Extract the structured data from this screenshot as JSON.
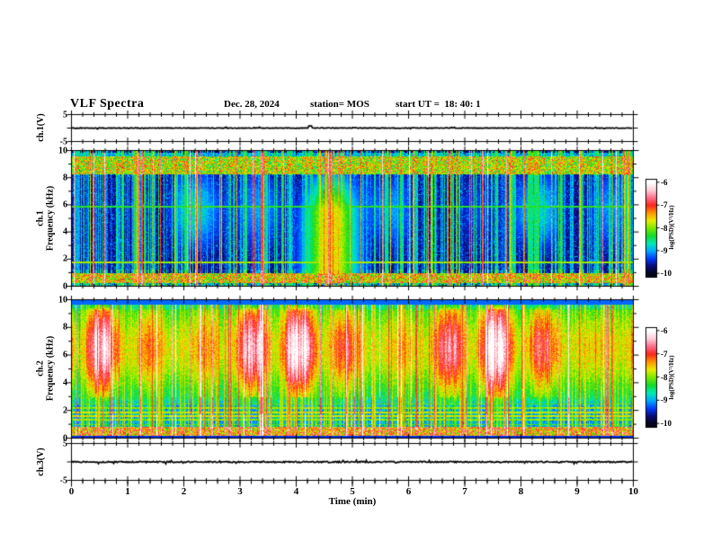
{
  "header": {
    "title": "VLF Spectra",
    "date": "Dec. 28, 2024",
    "station": "station= MOS",
    "start_ut": "start UT =  18: 40: 1"
  },
  "axes": {
    "time": {
      "label": "Time (min)",
      "range": [
        0,
        10
      ],
      "ticks": [
        0,
        1,
        2,
        3,
        4,
        5,
        6,
        7,
        8,
        9,
        10
      ],
      "minor_per_major": 5
    },
    "ch1_voltage": {
      "label": "ch.1(V)",
      "range": [
        -5,
        5
      ],
      "tick_labels": [
        5,
        -5
      ]
    },
    "ch3_voltage": {
      "label": "ch.3(V)",
      "range": [
        -5,
        5
      ],
      "tick_labels": [
        5,
        -5
      ]
    },
    "ch1_frequency": {
      "label_line1": "ch.1",
      "label_line2": "Frequency (kHz)",
      "range": [
        0,
        10
      ],
      "ticks": [
        10,
        8,
        6,
        4,
        2,
        0
      ]
    },
    "ch2_frequency": {
      "label_line1": "ch.2",
      "label_line2": "Frequency (kHz)",
      "range": [
        0,
        10
      ],
      "ticks": [
        10,
        8,
        6,
        4,
        2,
        0
      ]
    }
  },
  "colorbar": {
    "label": "log(PSD)(V²/Hz)",
    "range": [
      -10,
      -6
    ],
    "ticks": [
      -6,
      -7,
      -8,
      -9,
      -10
    ],
    "colors": [
      "#050519",
      "#0a0a78",
      "#003cff",
      "#00aaff",
      "#00ebb4",
      "#14dc28",
      "#78eb00",
      "#ebeb00",
      "#ff9600",
      "#ff281e",
      "#ff6e8c",
      "#ffcdd7",
      "#ffffff"
    ]
  },
  "chart_data": [
    {
      "type": "line",
      "name": "ch1-waveform",
      "channel": "ch.1(V)",
      "baseline_v": 0,
      "noise_v": 0.12,
      "spike": {
        "t_min": 4.25,
        "amp_v": 0.8
      },
      "seed": 5
    },
    {
      "type": "heatmap",
      "name": "ch1-spectrogram",
      "channel": "ch.1",
      "background_db": -9.9,
      "seed": 11,
      "sferic_density": 0.5,
      "strong_sferic_rate": 0.08,
      "bands": [
        {
          "f_lo": 8.25,
          "f_hi": 9.6,
          "level_db": -7.6
        },
        {
          "f_lo": 0.1,
          "f_hi": 0.9,
          "level_db": -7.8
        }
      ],
      "h_lines": [
        {
          "f_khz": 5.85,
          "level_db": -8.5
        },
        {
          "f_khz": 1.72,
          "level_db": -8.1
        }
      ],
      "event": {
        "t_min": 4.6,
        "dur_min": 0.7,
        "f_lo": 0.5,
        "f_hi": 9.3,
        "level_db": -7.7
      }
    },
    {
      "type": "heatmap",
      "name": "ch2-spectrogram",
      "channel": "ch.2",
      "background_db": -9.5,
      "seed": 22,
      "sferic_density": 0.6,
      "strong_sferic_rate": 0.12,
      "bands": [
        {
          "f_lo": 2.8,
          "f_hi": 9.3,
          "level_db": -7.2,
          "hot_f_lo": 5.2,
          "hot_f_hi": 8.6,
          "hot_level_db": -6.6
        },
        {
          "f_lo": 0.15,
          "f_hi": 0.8,
          "level_db": -7.6
        }
      ],
      "dark_band": {
        "f_lo": 1.7,
        "f_hi": 2.95
      },
      "h_lines": [
        {
          "f_khz": 0.95,
          "level_db": -8.4
        },
        {
          "f_khz": 1.3,
          "level_db": -8.2
        },
        {
          "f_khz": 1.55,
          "level_db": -8.0
        },
        {
          "f_khz": 1.85,
          "level_db": -8.0
        },
        {
          "f_khz": 2.15,
          "level_db": -8.2
        },
        {
          "f_khz": 2.45,
          "level_db": -8.4
        }
      ]
    },
    {
      "type": "line",
      "name": "ch3-waveform",
      "channel": "ch.3(V)",
      "baseline_v": 0,
      "noise_v": 0.18,
      "seed": 9
    }
  ]
}
